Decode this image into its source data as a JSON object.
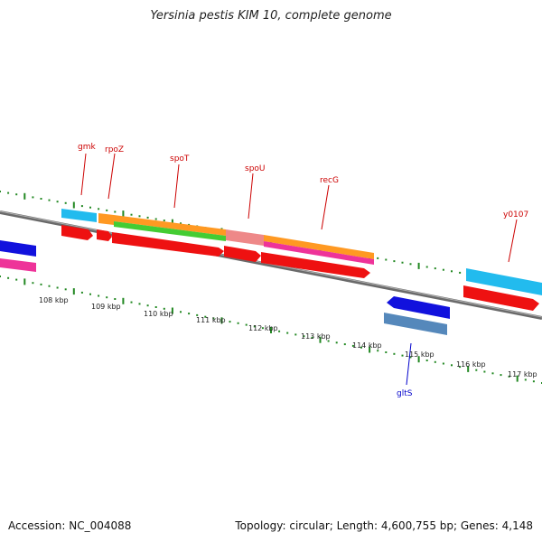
{
  "title": "Yersinia pestis KIM 10, complete genome",
  "footer": {
    "accession": "Accession: NC_004088",
    "summary": "Topology: circular; Length: 4,600,755 bp; Genes: 4,148"
  },
  "scale_labels": [
    "108 kbp",
    "109 kbp",
    "110 kbp",
    "111 kbp",
    "112 kbp",
    "113 kbp",
    "114 kbp",
    "115 kbp",
    "116 kbp",
    "117 kbp"
  ],
  "gene_labels": [
    {
      "text": "gmk",
      "color": "#cc0000"
    },
    {
      "text": "rpoZ",
      "color": "#cc0000"
    },
    {
      "text": "spoT",
      "color": "#cc0000"
    },
    {
      "text": "spoU",
      "color": "#cc0000"
    },
    {
      "text": "recG",
      "color": "#cc0000"
    },
    {
      "text": "y0107",
      "color": "#cc0000"
    },
    {
      "text": "gltS",
      "color": "#0000cc"
    }
  ],
  "colors": {
    "cds_forward": "#ee1111",
    "cds_reverse": "#1111dd",
    "cyan": "#22bbee",
    "orange": "#ff9922",
    "green": "#44cc33",
    "pink": "#ee3399",
    "salmon": "#ee8888",
    "steel": "#5588bb",
    "backbone": "#888888",
    "ticks": "#228822"
  }
}
